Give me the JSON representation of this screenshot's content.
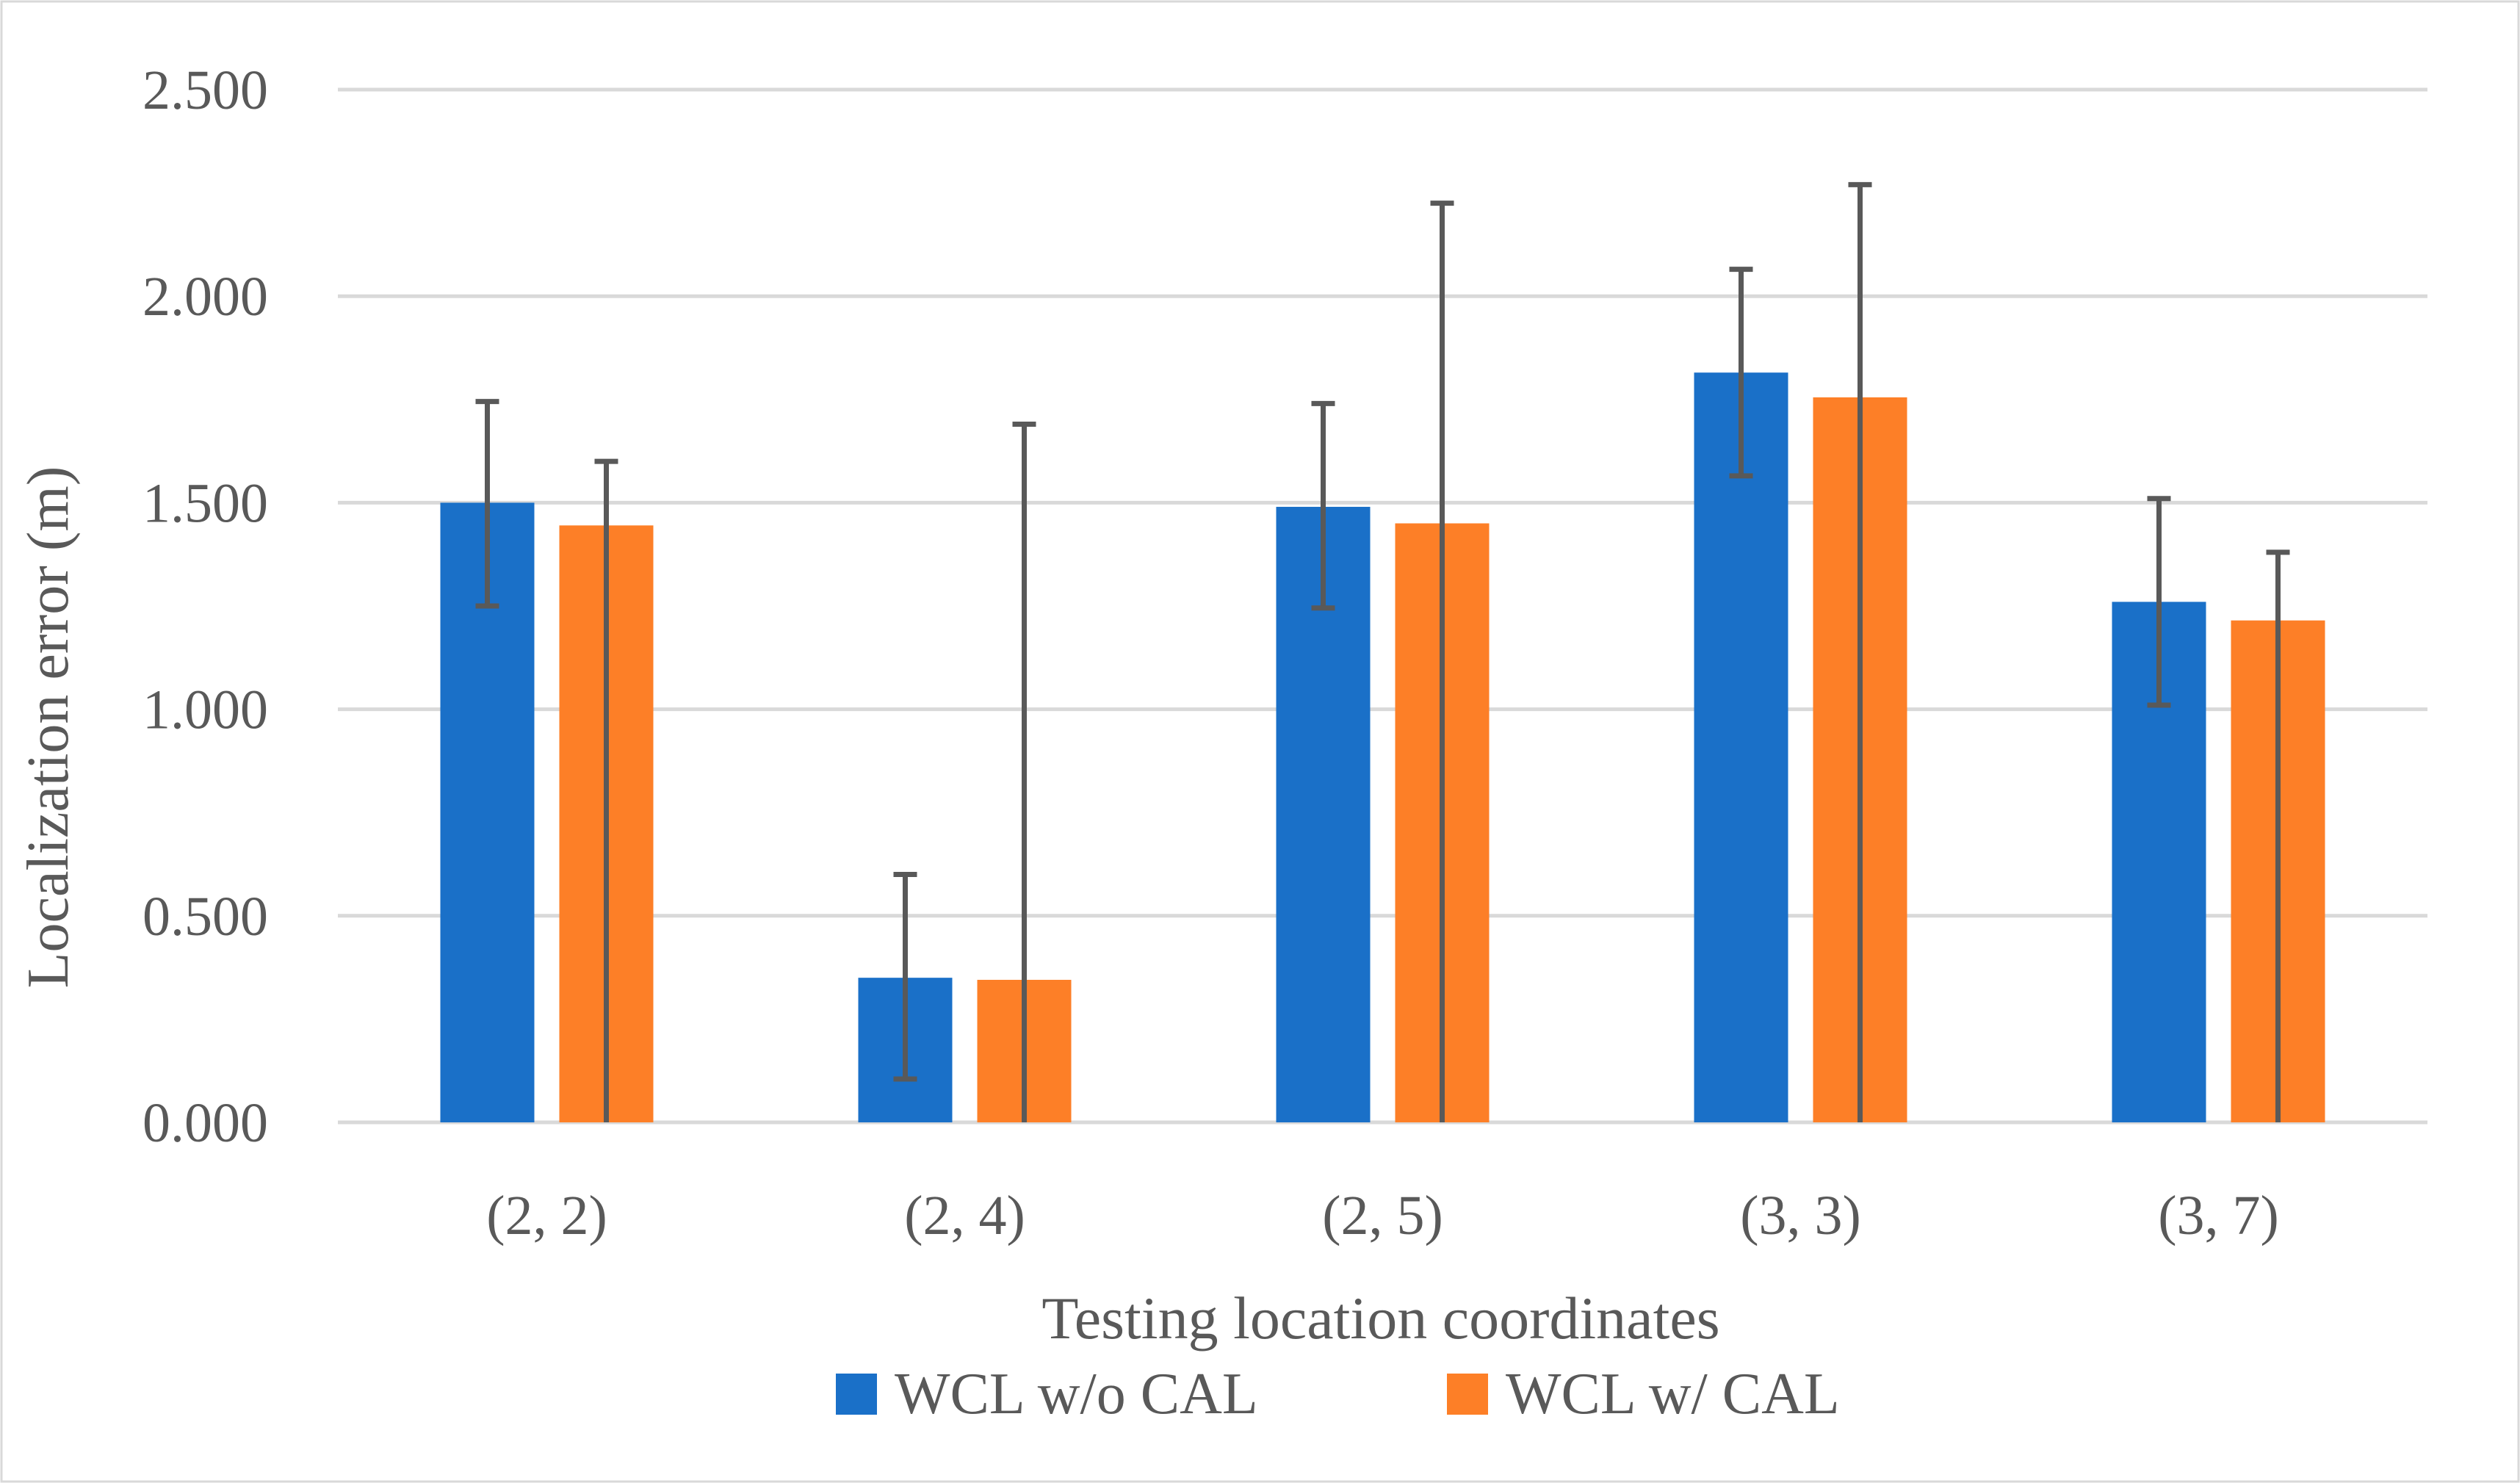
{
  "chart_data": {
    "type": "bar",
    "title": "",
    "xlabel": "Testing location coordinates",
    "ylabel": "Localization error (m)",
    "categories": [
      "(2, 2)",
      "(2, 4)",
      "(2, 5)",
      "(3, 3)",
      "(3, 7)"
    ],
    "ylim": [
      0,
      2.5
    ],
    "yticks": [
      0,
      0.5,
      1.0,
      1.5,
      2.0,
      2.5
    ],
    "ytick_labels": [
      "0.000",
      "0.500",
      "1.000",
      "1.500",
      "2.000",
      "2.500"
    ],
    "grid": true,
    "legend_position": "bottom",
    "series": [
      {
        "name": "WCL w/o CAL",
        "color": "#1a70c8",
        "values": [
          1.5,
          0.35,
          1.49,
          1.815,
          1.26
        ],
        "error_low": [
          1.25,
          0.105,
          1.245,
          1.565,
          1.01
        ],
        "error_high": [
          1.745,
          0.6,
          1.74,
          2.065,
          1.51
        ]
      },
      {
        "name": "WCL w/ CAL",
        "color": "#fd7f27",
        "values": [
          1.445,
          0.345,
          1.45,
          1.755,
          1.215
        ],
        "error_low": [
          0.0,
          0.0,
          0.0,
          0.0,
          0.0
        ],
        "error_high": [
          1.6,
          1.69,
          2.225,
          2.27,
          1.38
        ]
      }
    ]
  }
}
